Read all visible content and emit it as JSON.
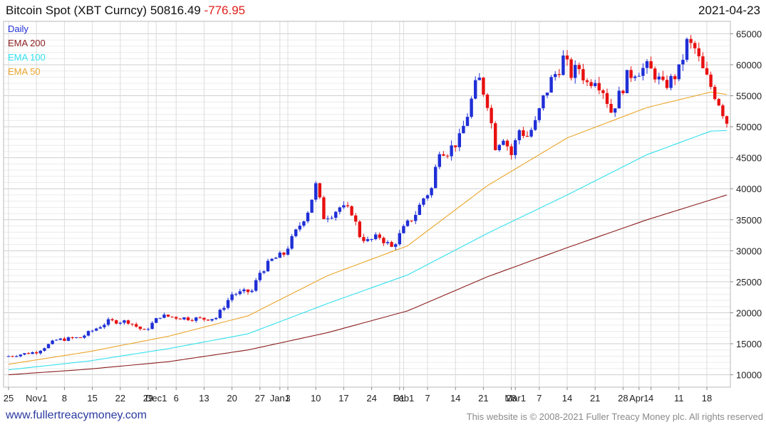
{
  "header": {
    "instrument": "Bitcoin Spot (XBT Curncy)",
    "price": "50816.49",
    "change": "-776.95",
    "date": "2021-04-23"
  },
  "footer": {
    "site": "www.fullertreacymoney.com",
    "copyright": "This website is © 2008-2021 Fuller Treacy Money plc. All rights reserved"
  },
  "colors": {
    "up": "#1f2fd6",
    "down": "#e81010",
    "ema200": "#8b1e1e",
    "ema100": "#33e0ee",
    "ema50": "#eba52a",
    "grid": "#dcdcdc"
  },
  "chart_data": {
    "type": "candlestick",
    "title": "Bitcoin Spot (XBT Curncy)",
    "period": "Daily",
    "legend": [
      {
        "label": "Daily",
        "color": "#1f2fd6"
      },
      {
        "label": "EMA 200",
        "color": "#8b1e1e"
      },
      {
        "label": "EMA 100",
        "color": "#33e0ee"
      },
      {
        "label": "EMA 50",
        "color": "#eba52a"
      }
    ],
    "ylim": [
      8000,
      67000
    ],
    "y_ticks": [
      10000,
      15000,
      20000,
      25000,
      30000,
      35000,
      40000,
      45000,
      50000,
      55000,
      60000,
      65000
    ],
    "x_tick_labels": [
      {
        "i": 0,
        "label": "25"
      },
      {
        "i": 7,
        "label": "Nov1"
      },
      {
        "i": 14,
        "label": "8"
      },
      {
        "i": 21,
        "label": "15"
      },
      {
        "i": 28,
        "label": "22"
      },
      {
        "i": 35,
        "label": "29"
      },
      {
        "i": 37,
        "label": "Dec1"
      },
      {
        "i": 42,
        "label": "6"
      },
      {
        "i": 49,
        "label": "13"
      },
      {
        "i": 56,
        "label": "20"
      },
      {
        "i": 63,
        "label": "27"
      },
      {
        "i": 68,
        "label": "Jan1"
      },
      {
        "i": 70,
        "label": "3"
      },
      {
        "i": 77,
        "label": "10"
      },
      {
        "i": 84,
        "label": "17"
      },
      {
        "i": 91,
        "label": "24"
      },
      {
        "i": 98,
        "label": "31"
      },
      {
        "i": 99,
        "label": "Feb1"
      },
      {
        "i": 105,
        "label": "7"
      },
      {
        "i": 112,
        "label": "14"
      },
      {
        "i": 119,
        "label": "21"
      },
      {
        "i": 126,
        "label": "28"
      },
      {
        "i": 127,
        "label": "Mar1"
      },
      {
        "i": 133,
        "label": "7"
      },
      {
        "i": 140,
        "label": "14"
      },
      {
        "i": 147,
        "label": "21"
      },
      {
        "i": 154,
        "label": "28"
      },
      {
        "i": 158,
        "label": "Apr1"
      },
      {
        "i": 161,
        "label": "4"
      },
      {
        "i": 168,
        "label": "11"
      },
      {
        "i": 175,
        "label": "18"
      }
    ],
    "close_anchors": [
      [
        0,
        13000
      ],
      [
        7,
        13700
      ],
      [
        12,
        15600
      ],
      [
        18,
        16000
      ],
      [
        25,
        18600
      ],
      [
        30,
        18600
      ],
      [
        34,
        17000
      ],
      [
        38,
        19500
      ],
      [
        45,
        19100
      ],
      [
        49,
        19000
      ],
      [
        52,
        19200
      ],
      [
        56,
        23000
      ],
      [
        61,
        23500
      ],
      [
        63,
        26500
      ],
      [
        66,
        28500
      ],
      [
        69,
        29500
      ],
      [
        72,
        33000
      ],
      [
        75,
        36500
      ],
      [
        77,
        40500
      ],
      [
        79,
        35500
      ],
      [
        81,
        36000
      ],
      [
        83,
        37000
      ],
      [
        86,
        36300
      ],
      [
        88,
        32500
      ],
      [
        90,
        31500
      ],
      [
        93,
        32300
      ],
      [
        96,
        30500
      ],
      [
        99,
        33500
      ],
      [
        102,
        36000
      ],
      [
        104,
        38500
      ],
      [
        106,
        40000
      ],
      [
        108,
        46500
      ],
      [
        110,
        46000
      ],
      [
        113,
        48000
      ],
      [
        115,
        52000
      ],
      [
        117,
        56500
      ],
      [
        118,
        57500
      ],
      [
        120,
        54000
      ],
      [
        122,
        47000
      ],
      [
        124,
        48500
      ],
      [
        126,
        45500
      ],
      [
        128,
        49500
      ],
      [
        130,
        48500
      ],
      [
        132,
        50500
      ],
      [
        134,
        54500
      ],
      [
        136,
        57500
      ],
      [
        138,
        59500
      ],
      [
        139,
        61000
      ],
      [
        141,
        58500
      ],
      [
        143,
        59500
      ],
      [
        145,
        57000
      ],
      [
        147,
        58000
      ],
      [
        149,
        56000
      ],
      [
        151,
        52500
      ],
      [
        153,
        55000
      ],
      [
        155,
        58000
      ],
      [
        157,
        59000
      ],
      [
        160,
        59500
      ],
      [
        162,
        58500
      ],
      [
        164,
        56500
      ],
      [
        166,
        57500
      ],
      [
        168,
        59000
      ],
      [
        170,
        63500
      ],
      [
        172,
        62500
      ],
      [
        174,
        59000
      ],
      [
        176,
        56500
      ],
      [
        178,
        54000
      ],
      [
        180,
        50816
      ]
    ],
    "ema_values": {
      "ema200": [
        [
          0,
          10000
        ],
        [
          20,
          10900
        ],
        [
          40,
          12100
        ],
        [
          60,
          14000
        ],
        [
          80,
          16800
        ],
        [
          100,
          20300
        ],
        [
          120,
          25800
        ],
        [
          140,
          30500
        ],
        [
          160,
          35000
        ],
        [
          180,
          39000
        ]
      ],
      "ema100": [
        [
          0,
          10800
        ],
        [
          20,
          12200
        ],
        [
          40,
          14200
        ],
        [
          60,
          16600
        ],
        [
          80,
          21500
        ],
        [
          100,
          26100
        ],
        [
          120,
          32800
        ],
        [
          140,
          39000
        ],
        [
          160,
          45500
        ],
        [
          176,
          49300
        ],
        [
          180,
          49400
        ]
      ],
      "ema50": [
        [
          0,
          11700
        ],
        [
          20,
          13700
        ],
        [
          40,
          16200
        ],
        [
          60,
          19500
        ],
        [
          80,
          26000
        ],
        [
          100,
          30800
        ],
        [
          120,
          40500
        ],
        [
          140,
          48200
        ],
        [
          160,
          53100
        ],
        [
          176,
          55600
        ],
        [
          180,
          55200
        ]
      ]
    }
  }
}
